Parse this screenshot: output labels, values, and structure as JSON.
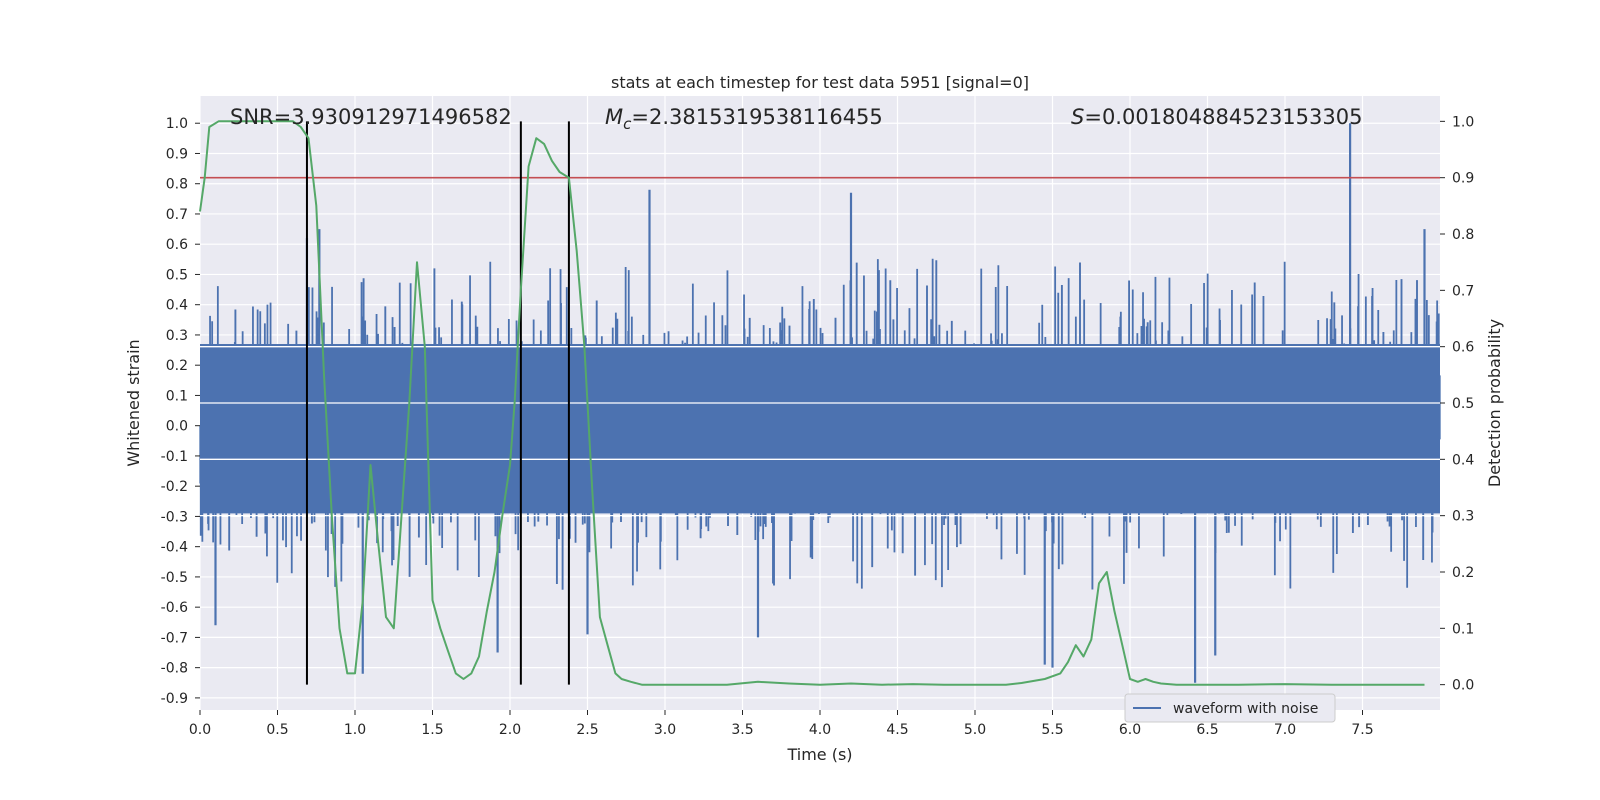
{
  "chart_data": {
    "type": "line",
    "title": "stats at each timestep for test data 5951 [signal=0]",
    "xlabel": "Time (s)",
    "ylabel": "Whitened strain",
    "y2label": "Detection probability",
    "xlim": [
      0.0,
      8.0
    ],
    "ylim": [
      -0.94,
      1.09
    ],
    "y2lim": [
      -0.045,
      1.045
    ],
    "x_ticks": [
      "0.0",
      "0.5",
      "1.0",
      "1.5",
      "2.0",
      "2.5",
      "3.0",
      "3.5",
      "4.0",
      "4.5",
      "5.0",
      "5.5",
      "6.0",
      "6.5",
      "7.0",
      "7.5"
    ],
    "y_ticks": [
      "1.0",
      "0.9",
      "0.8",
      "0.7",
      "0.6",
      "0.5",
      "0.4",
      "0.3",
      "0.2",
      "0.1",
      "0.0",
      "-0.1",
      "-0.2",
      "-0.3",
      "-0.4",
      "-0.5",
      "-0.6",
      "-0.7",
      "-0.8",
      "-0.9"
    ],
    "y2_ticks": [
      "1.0",
      "0.9",
      "0.8",
      "0.7",
      "0.6",
      "0.5",
      "0.4",
      "0.3",
      "0.2",
      "0.1",
      "0.0"
    ],
    "grid": true,
    "legend_position": "lower-right",
    "annotations": {
      "snr": "SNR=3.930912971496582",
      "mc_prefix": "M",
      "mc_sub": "c",
      "mc_value": "=2.3815319538116455",
      "s_prefix": "S",
      "s_value": "=0.001804884523153305"
    },
    "threshold_y2": 0.9,
    "vertical_lines_x": [
      0.69,
      2.07,
      2.38
    ],
    "series": [
      {
        "name": "waveform with noise",
        "color": "#4c72b0",
        "kind": "noise-envelope",
        "typical_amplitude": 0.32,
        "notable_peaks": [
          {
            "x": 0.77,
            "y": 0.65
          },
          {
            "x": 0.69,
            "y": 0.62
          },
          {
            "x": 2.9,
            "y": 0.78
          },
          {
            "x": 4.2,
            "y": 0.77
          },
          {
            "x": 7.42,
            "y": 1.0
          },
          {
            "x": 7.9,
            "y": 0.65
          },
          {
            "x": 0.1,
            "y": -0.66
          },
          {
            "x": 1.05,
            "y": -0.82
          },
          {
            "x": 1.92,
            "y": -0.75
          },
          {
            "x": 2.5,
            "y": -0.69
          },
          {
            "x": 3.6,
            "y": -0.7
          },
          {
            "x": 5.45,
            "y": -0.79
          },
          {
            "x": 5.5,
            "y": -0.8
          },
          {
            "x": 6.42,
            "y": -0.85
          },
          {
            "x": 6.55,
            "y": -0.76
          }
        ]
      },
      {
        "name": "detection probability",
        "color": "#55a868",
        "axis": "right",
        "x": [
          0.0,
          0.03,
          0.06,
          0.12,
          0.2,
          0.3,
          0.4,
          0.5,
          0.55,
          0.6,
          0.65,
          0.7,
          0.75,
          0.8,
          0.85,
          0.9,
          0.95,
          1.0,
          1.05,
          1.1,
          1.15,
          1.2,
          1.25,
          1.3,
          1.35,
          1.4,
          1.45,
          1.5,
          1.55,
          1.6,
          1.65,
          1.7,
          1.75,
          1.8,
          1.85,
          1.9,
          1.95,
          2.0,
          2.03,
          2.07,
          2.12,
          2.17,
          2.22,
          2.27,
          2.32,
          2.38,
          2.43,
          2.48,
          2.53,
          2.58,
          2.63,
          2.68,
          2.72,
          2.78,
          2.85,
          3.0,
          3.2,
          3.4,
          3.6,
          3.8,
          4.0,
          4.2,
          4.4,
          4.6,
          4.8,
          5.0,
          5.2,
          5.3,
          5.45,
          5.55,
          5.6,
          5.65,
          5.7,
          5.75,
          5.8,
          5.85,
          5.9,
          5.95,
          6.0,
          6.05,
          6.1,
          6.15,
          6.2,
          6.3,
          6.4,
          6.5,
          6.7,
          7.0,
          7.3,
          7.6,
          7.9
        ],
        "y": [
          0.84,
          0.9,
          0.99,
          1.0,
          1.0,
          1.0,
          1.0,
          1.0,
          1.0,
          1.0,
          0.99,
          0.97,
          0.85,
          0.55,
          0.3,
          0.1,
          0.02,
          0.02,
          0.15,
          0.39,
          0.25,
          0.12,
          0.1,
          0.3,
          0.5,
          0.75,
          0.6,
          0.15,
          0.1,
          0.06,
          0.02,
          0.01,
          0.02,
          0.05,
          0.13,
          0.2,
          0.3,
          0.39,
          0.5,
          0.7,
          0.92,
          0.97,
          0.96,
          0.93,
          0.91,
          0.9,
          0.77,
          0.6,
          0.35,
          0.12,
          0.07,
          0.02,
          0.01,
          0.005,
          0.0,
          0.0,
          0.0,
          0.0,
          0.005,
          0.002,
          0.0,
          0.002,
          0.0,
          0.001,
          0.0,
          0.0,
          0.0,
          0.003,
          0.01,
          0.02,
          0.04,
          0.07,
          0.05,
          0.08,
          0.18,
          0.2,
          0.13,
          0.07,
          0.01,
          0.005,
          0.01,
          0.005,
          0.002,
          0.0,
          0.0,
          0.0,
          0.0,
          0.001,
          0.0,
          0.0,
          0.0
        ]
      }
    ]
  }
}
